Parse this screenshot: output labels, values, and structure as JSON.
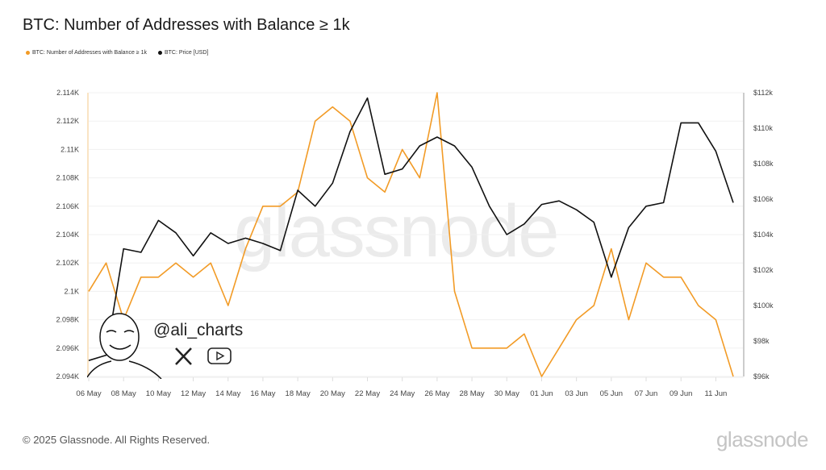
{
  "title": "BTC: Number of Addresses with Balance ≥ 1k",
  "legend": [
    {
      "label": "BTC: Number of Addresses with Balance ≥ 1k",
      "color": "#f29b26"
    },
    {
      "label": "BTC: Price [USD]",
      "color": "#111111"
    }
  ],
  "watermark": "glassnode",
  "overlay": {
    "handle": "@ali_charts",
    "icons": [
      "x-logo-icon",
      "youtube-icon",
      "avatar-caricature"
    ]
  },
  "footer": {
    "copyright": "© 2025 Glassnode. All Rights Reserved.",
    "logo": "glassnode"
  },
  "chart_data": {
    "type": "line",
    "title": "BTC: Number of Addresses with Balance ≥ 1k",
    "x": [
      "06 May",
      "07 May",
      "08 May",
      "09 May",
      "10 May",
      "11 May",
      "12 May",
      "13 May",
      "14 May",
      "15 May",
      "16 May",
      "17 May",
      "18 May",
      "19 May",
      "20 May",
      "21 May",
      "22 May",
      "23 May",
      "24 May",
      "25 May",
      "26 May",
      "27 May",
      "28 May",
      "29 May",
      "30 May",
      "31 May",
      "01 Jun",
      "02 Jun",
      "03 Jun",
      "04 Jun",
      "05 Jun",
      "06 Jun",
      "07 Jun",
      "08 Jun",
      "09 Jun",
      "10 Jun",
      "11 Jun",
      "12 Jun"
    ],
    "x_tick_labels": [
      "06 May",
      "08 May",
      "10 May",
      "12 May",
      "14 May",
      "16 May",
      "18 May",
      "20 May",
      "22 May",
      "24 May",
      "26 May",
      "28 May",
      "30 May",
      "01 Jun",
      "03 Jun",
      "05 Jun",
      "07 Jun",
      "09 Jun",
      "11 Jun"
    ],
    "series": [
      {
        "name": "BTC: Number of Addresses with Balance ≥ 1k",
        "axis": "left",
        "color": "#f29b26",
        "values": [
          2100,
          2102,
          2098,
          2101,
          2101,
          2102,
          2101,
          2102,
          2099,
          2103,
          2106,
          2106,
          2107,
          2112,
          2113,
          2112,
          2108,
          2107,
          2110,
          2108,
          2114,
          2100,
          2096,
          2096,
          2096,
          2097,
          2094,
          2096,
          2098,
          2099,
          2103,
          2098,
          2102,
          2101,
          2101,
          2099,
          2098,
          2094
        ]
      },
      {
        "name": "BTC: Price [USD]",
        "axis": "right",
        "color": "#111111",
        "values": [
          96900,
          97200,
          103200,
          103000,
          104800,
          104100,
          102800,
          104100,
          103500,
          103800,
          103500,
          103100,
          106500,
          105600,
          106900,
          109800,
          111700,
          107400,
          107700,
          109000,
          109500,
          109000,
          107800,
          105600,
          104000,
          104600,
          105700,
          105900,
          105400,
          104700,
          101600,
          104400,
          105600,
          105800,
          110300,
          110300,
          108700,
          105800
        ]
      }
    ],
    "y_left": {
      "range": [
        2094,
        2114
      ],
      "tick_labels": [
        "2.094K",
        "2.096K",
        "2.098K",
        "2.1K",
        "2.102K",
        "2.104K",
        "2.106K",
        "2.108K",
        "2.11K",
        "2.112K",
        "2.114K"
      ]
    },
    "y_right": {
      "range": [
        96000,
        112000
      ],
      "tick_labels": [
        "$96k",
        "$98k",
        "$100k",
        "$102k",
        "$104k",
        "$106k",
        "$108k",
        "$110k",
        "$112k"
      ]
    },
    "grid": true,
    "legend_position": "top-left"
  }
}
